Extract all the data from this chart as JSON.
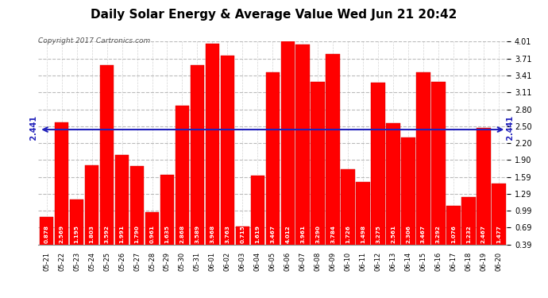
{
  "title": "Daily Solar Energy & Average Value Wed Jun 21 20:42",
  "copyright": "Copyright 2017 Cartronics.com",
  "categories": [
    "05-21",
    "05-22",
    "05-23",
    "05-24",
    "05-25",
    "05-26",
    "05-27",
    "05-28",
    "05-29",
    "05-30",
    "05-31",
    "06-01",
    "06-02",
    "06-03",
    "06-04",
    "06-05",
    "06-06",
    "06-07",
    "06-08",
    "06-09",
    "06-10",
    "06-11",
    "06-12",
    "06-13",
    "06-14",
    "06-15",
    "06-16",
    "06-17",
    "06-18",
    "06-19",
    "06-20"
  ],
  "values": [
    0.878,
    2.569,
    1.195,
    1.803,
    3.592,
    1.991,
    1.79,
    0.961,
    1.635,
    2.868,
    3.589,
    3.968,
    3.763,
    0.715,
    1.619,
    3.467,
    4.012,
    3.961,
    3.29,
    3.784,
    1.726,
    1.498,
    3.275,
    2.561,
    2.306,
    3.467,
    3.292,
    1.076,
    1.232,
    2.467,
    1.477
  ],
  "average": 2.441,
  "bar_color": "#ff0000",
  "average_line_color": "#2222bb",
  "background_color": "#ffffff",
  "plot_bg_color": "#ffffff",
  "grid_color": "#aaaaaa",
  "ylim_min": 0.39,
  "ylim_max": 4.01,
  "yticks": [
    0.39,
    0.69,
    0.99,
    1.29,
    1.59,
    1.9,
    2.2,
    2.5,
    2.8,
    3.11,
    3.41,
    3.71,
    4.01
  ],
  "legend_avg_color": "#2222cc",
  "legend_daily_color": "#ff0000",
  "legend_text_color": "#ffffff",
  "value_fontsize": 5.2,
  "title_fontsize": 11,
  "copyright_fontsize": 6.5
}
